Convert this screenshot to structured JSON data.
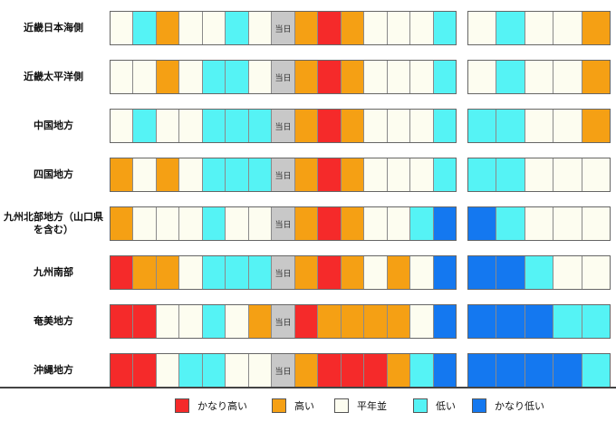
{
  "today_label": "当日",
  "categories": {
    "vh": {
      "label": "かなり高い",
      "color": "#f52a2a"
    },
    "h": {
      "label": "高い",
      "color": "#f5a014"
    },
    "n": {
      "label": "平年並",
      "color": "#fdfdf0"
    },
    "l": {
      "label": "低い",
      "color": "#55f3f5"
    },
    "vl": {
      "label": "かなり低い",
      "color": "#1478f0"
    },
    "t": {
      "label": "",
      "color": "#c8c8c8"
    }
  },
  "legend_order": [
    "vh",
    "h",
    "n",
    "l",
    "vl"
  ],
  "regions": [
    {
      "name": "近畿日本海側",
      "main": [
        "n",
        "l",
        "h",
        "n",
        "n",
        "l",
        "n",
        "t",
        "h",
        "vh",
        "h",
        "n",
        "n",
        "n",
        "l"
      ],
      "ext": [
        "n",
        "l",
        "n",
        "n",
        "h"
      ]
    },
    {
      "name": "近畿太平洋側",
      "main": [
        "n",
        "n",
        "h",
        "n",
        "l",
        "l",
        "n",
        "t",
        "h",
        "vh",
        "h",
        "n",
        "n",
        "n",
        "l"
      ],
      "ext": [
        "n",
        "l",
        "n",
        "n",
        "h"
      ]
    },
    {
      "name": "中国地方",
      "main": [
        "n",
        "l",
        "n",
        "n",
        "l",
        "l",
        "l",
        "t",
        "h",
        "vh",
        "h",
        "n",
        "n",
        "n",
        "l"
      ],
      "ext": [
        "l",
        "l",
        "n",
        "n",
        "h"
      ]
    },
    {
      "name": "四国地方",
      "main": [
        "h",
        "n",
        "h",
        "n",
        "l",
        "l",
        "l",
        "t",
        "h",
        "vh",
        "h",
        "n",
        "n",
        "n",
        "l"
      ],
      "ext": [
        "l",
        "l",
        "n",
        "n",
        "n"
      ]
    },
    {
      "name": "九州北部地方（山口県を含む）",
      "main": [
        "h",
        "n",
        "n",
        "n",
        "l",
        "n",
        "n",
        "t",
        "h",
        "vh",
        "h",
        "n",
        "n",
        "l",
        "vl"
      ],
      "ext": [
        "vl",
        "l",
        "n",
        "n",
        "n"
      ]
    },
    {
      "name": "九州南部",
      "main": [
        "vh",
        "h",
        "h",
        "n",
        "l",
        "l",
        "l",
        "t",
        "h",
        "vh",
        "h",
        "n",
        "h",
        "n",
        "vl"
      ],
      "ext": [
        "vl",
        "vl",
        "l",
        "n",
        "n"
      ]
    },
    {
      "name": "奄美地方",
      "main": [
        "vh",
        "vh",
        "n",
        "n",
        "l",
        "n",
        "h",
        "t",
        "vh",
        "h",
        "h",
        "h",
        "h",
        "n",
        "vl"
      ],
      "ext": [
        "vl",
        "vl",
        "vl",
        "l",
        "l"
      ]
    },
    {
      "name": "沖縄地方",
      "main": [
        "vh",
        "vh",
        "n",
        "l",
        "l",
        "n",
        "n",
        "t",
        "h",
        "vh",
        "vh",
        "vh",
        "h",
        "l",
        "vl"
      ],
      "ext": [
        "vl",
        "vl",
        "vl",
        "vl",
        "l"
      ]
    }
  ]
}
